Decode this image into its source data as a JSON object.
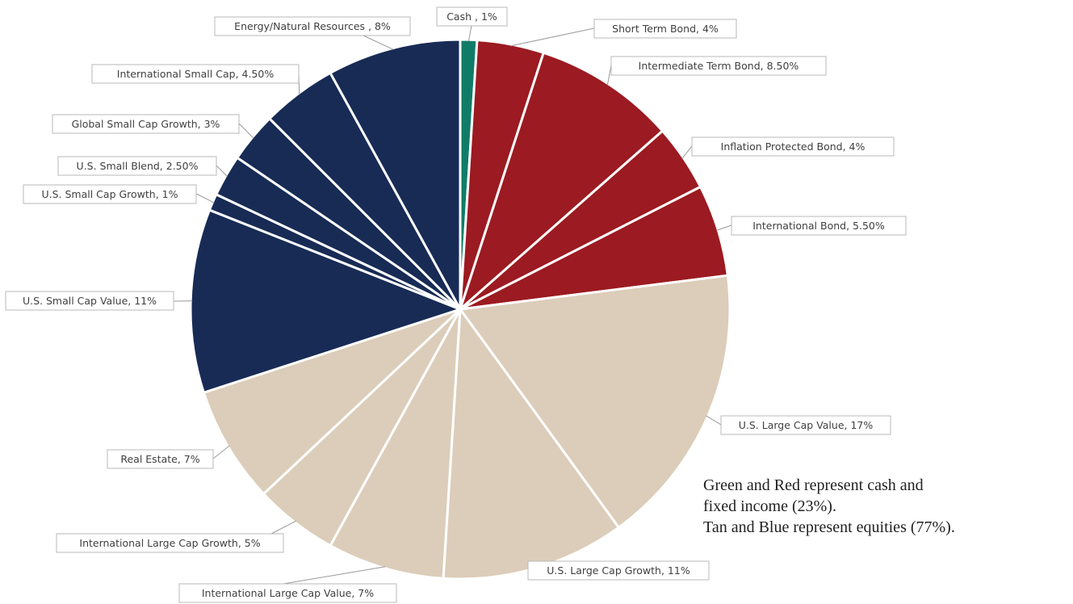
{
  "chart_data": {
    "type": "pie",
    "title": "",
    "start_angle_deg": 0,
    "direction": "clockwise",
    "slices": [
      {
        "label": "Cash , 1%",
        "value": 1,
        "color": "#107c68"
      },
      {
        "label": "Short Term Bond, 4%",
        "value": 4,
        "color": "#9c1a21"
      },
      {
        "label": "Intermediate Term Bond, 8.50%",
        "value": 8.5,
        "color": "#9c1a21"
      },
      {
        "label": "Inflation Protected Bond, 4%",
        "value": 4,
        "color": "#9c1a21"
      },
      {
        "label": "International Bond, 5.50%",
        "value": 5.5,
        "color": "#9c1a21"
      },
      {
        "label": "U.S. Large Cap Value, 17%",
        "value": 17,
        "color": "#dbcdb9"
      },
      {
        "label": "U.S. Large Cap Growth, 11%",
        "value": 11,
        "color": "#dbcdb9"
      },
      {
        "label": "International Large Cap Value, 7%",
        "value": 7,
        "color": "#dbcdb9"
      },
      {
        "label": "International Large Cap Growth, 5%",
        "value": 5,
        "color": "#dbcdb9"
      },
      {
        "label": "Real Estate, 7%",
        "value": 7,
        "color": "#dbcdb9"
      },
      {
        "label": "U.S. Small Cap Value, 11%",
        "value": 11,
        "color": "#172b55"
      },
      {
        "label": "U.S. Small Cap Growth, 1%",
        "value": 1,
        "color": "#172b55"
      },
      {
        "label": "U.S. Small Blend, 2.50%",
        "value": 2.5,
        "color": "#172b55"
      },
      {
        "label": "Global Small Cap Growth, 3%",
        "value": 3,
        "color": "#172b55"
      },
      {
        "label": "International Small Cap, 4.50%",
        "value": 4.5,
        "color": "#172b55"
      },
      {
        "label": "Energy/Natural Resources , 8%",
        "value": 8,
        "color": "#172b55"
      }
    ]
  },
  "note": {
    "line1": "Green and Red represent cash and",
    "line2": "fixed income (23%).",
    "line3": "Tan and Blue represent equities (77%)."
  }
}
